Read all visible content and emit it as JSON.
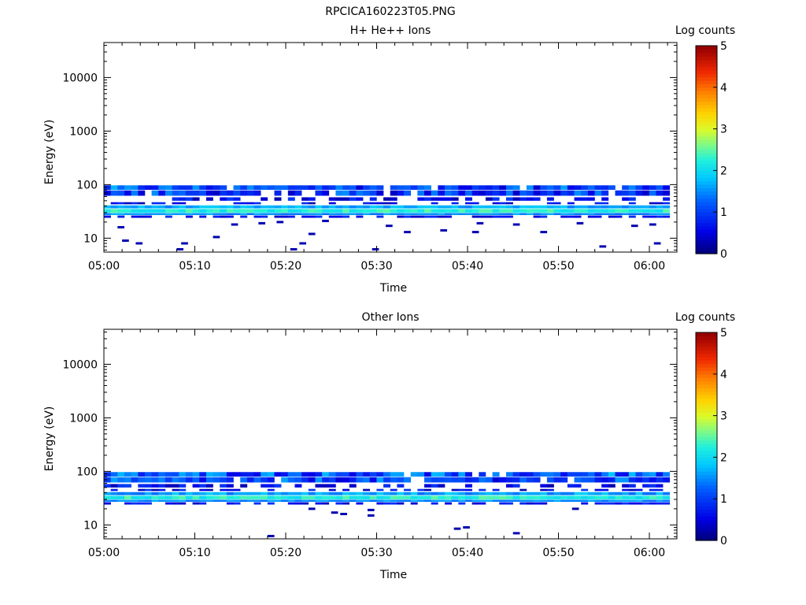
{
  "figure_title": "RPCICA160223T05.PNG",
  "chart_data": [
    {
      "type": "heatmap",
      "title": "H+ He++ Ions",
      "xlabel": "Time",
      "ylabel": "Energy (eV)",
      "x_ticks": [
        "05:00",
        "05:10",
        "05:20",
        "05:30",
        "05:40",
        "05:50",
        "06:00"
      ],
      "y_ticks": [
        "10",
        "100",
        "1000",
        "10000"
      ],
      "y_scale": "log",
      "ylim": [
        5.5,
        45000
      ],
      "xlim_minutes": [
        0,
        63.5
      ],
      "colorbar": {
        "label": "Log counts",
        "ticks": [
          "0",
          "1",
          "2",
          "3",
          "4",
          "5"
        ],
        "range": [
          0,
          5
        ]
      },
      "bands": [
        {
          "e_lo": 80,
          "e_hi": 97,
          "value_min": 0.4,
          "value_max": 1.7,
          "fill": 0.95
        },
        {
          "e_lo": 62,
          "e_hi": 78,
          "value_min": 0.3,
          "value_max": 1.5,
          "fill": 0.85
        },
        {
          "e_lo": 50,
          "e_hi": 58,
          "value_min": 0.2,
          "value_max": 1.0,
          "fill": 0.5
        },
        {
          "e_lo": 43,
          "e_hi": 47,
          "value_min": 0.2,
          "value_max": 0.9,
          "fill": 0.35
        },
        {
          "e_lo": 36,
          "e_hi": 41,
          "value_min": 1.4,
          "value_max": 1.9,
          "fill": 1.0
        },
        {
          "e_lo": 30,
          "e_hi": 35,
          "value_min": 2.0,
          "value_max": 2.5,
          "fill": 1.0
        },
        {
          "e_lo": 27,
          "e_hi": 29.5,
          "value_min": 1.3,
          "value_max": 1.7,
          "fill": 1.0
        },
        {
          "e_lo": 24,
          "e_hi": 26.5,
          "value_min": 0.3,
          "value_max": 0.9,
          "fill": 0.6
        }
      ],
      "scatter": [
        {
          "t": 1.5,
          "e": 16
        },
        {
          "t": 14,
          "e": 18
        },
        {
          "t": 17,
          "e": 19
        },
        {
          "t": 19,
          "e": 20
        },
        {
          "t": 24,
          "e": 21
        },
        {
          "t": 31,
          "e": 17
        },
        {
          "t": 41,
          "e": 19
        },
        {
          "t": 45,
          "e": 18
        },
        {
          "t": 52,
          "e": 19
        },
        {
          "t": 58,
          "e": 17
        },
        {
          "t": 60,
          "e": 18
        },
        {
          "t": 2,
          "e": 9
        },
        {
          "t": 3.5,
          "e": 8
        },
        {
          "t": 8.5,
          "e": 8
        },
        {
          "t": 12,
          "e": 10.5
        },
        {
          "t": 21.5,
          "e": 8
        },
        {
          "t": 22.5,
          "e": 12
        },
        {
          "t": 33,
          "e": 13
        },
        {
          "t": 37,
          "e": 14
        },
        {
          "t": 40.5,
          "e": 13
        },
        {
          "t": 48,
          "e": 13
        },
        {
          "t": 54.5,
          "e": 7
        },
        {
          "t": 60.5,
          "e": 8
        },
        {
          "t": 8,
          "e": 6.2
        },
        {
          "t": 20.5,
          "e": 6.2
        },
        {
          "t": 29.5,
          "e": 6.2
        }
      ]
    },
    {
      "type": "heatmap",
      "title": "Other Ions",
      "xlabel": "Time",
      "ylabel": "Energy (eV)",
      "x_ticks": [
        "05:00",
        "05:10",
        "05:20",
        "05:30",
        "05:40",
        "05:50",
        "06:00"
      ],
      "y_ticks": [
        "10",
        "100",
        "1000",
        "10000"
      ],
      "y_scale": "log",
      "ylim": [
        5.5,
        45000
      ],
      "xlim_minutes": [
        0,
        63.5
      ],
      "colorbar": {
        "label": "Log counts",
        "ticks": [
          "0",
          "1",
          "2",
          "3",
          "4",
          "5"
        ],
        "range": [
          0,
          5
        ]
      },
      "bands": [
        {
          "e_lo": 80,
          "e_hi": 97,
          "value_min": 0.5,
          "value_max": 1.8,
          "fill": 0.97
        },
        {
          "e_lo": 62,
          "e_hi": 78,
          "value_min": 0.4,
          "value_max": 1.6,
          "fill": 0.9
        },
        {
          "e_lo": 50,
          "e_hi": 58,
          "value_min": 0.2,
          "value_max": 1.0,
          "fill": 0.45
        },
        {
          "e_lo": 43,
          "e_hi": 47,
          "value_min": 0.2,
          "value_max": 0.9,
          "fill": 0.4
        },
        {
          "e_lo": 36,
          "e_hi": 41,
          "value_min": 1.3,
          "value_max": 1.9,
          "fill": 1.0
        },
        {
          "e_lo": 30,
          "e_hi": 35,
          "value_min": 2.0,
          "value_max": 2.5,
          "fill": 1.0
        },
        {
          "e_lo": 27,
          "e_hi": 29.5,
          "value_min": 1.3,
          "value_max": 1.7,
          "fill": 1.0
        },
        {
          "e_lo": 24,
          "e_hi": 26.5,
          "value_min": 0.3,
          "value_max": 0.9,
          "fill": 0.65
        }
      ],
      "scatter": [
        {
          "t": 22.5,
          "e": 20
        },
        {
          "t": 25,
          "e": 17
        },
        {
          "t": 26,
          "e": 16
        },
        {
          "t": 29,
          "e": 19
        },
        {
          "t": 29,
          "e": 15
        },
        {
          "t": 51.5,
          "e": 20
        },
        {
          "t": 38.5,
          "e": 8.5
        },
        {
          "t": 39.5,
          "e": 9
        },
        {
          "t": 45,
          "e": 7
        },
        {
          "t": 18,
          "e": 6.2
        }
      ]
    }
  ]
}
